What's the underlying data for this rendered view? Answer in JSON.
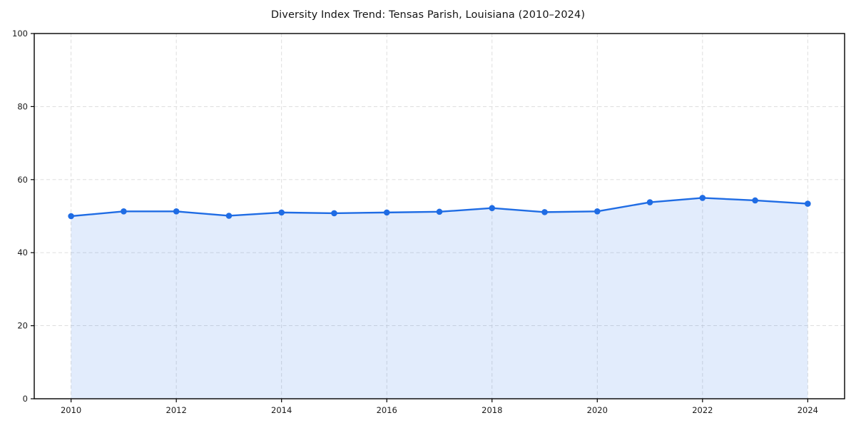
{
  "title": "Diversity Index Trend: Tensas Parish, Louisiana (2010–2024)",
  "chart_data": {
    "type": "line",
    "title": "Diversity Index Trend: Tensas Parish, Louisiana (2010–2024)",
    "x": [
      2010,
      2011,
      2012,
      2013,
      2014,
      2015,
      2016,
      2017,
      2018,
      2019,
      2020,
      2021,
      2022,
      2023,
      2024
    ],
    "series": [
      {
        "name": "Diversity Index",
        "values": [
          50.0,
          51.3,
          51.3,
          50.1,
          51.0,
          50.8,
          51.0,
          51.2,
          52.2,
          51.1,
          51.3,
          53.8,
          55.0,
          54.3,
          53.4
        ]
      }
    ],
    "xlabel": "",
    "ylabel": "",
    "ylim": [
      0,
      100
    ],
    "yticks": [
      0,
      20,
      40,
      60,
      80,
      100
    ],
    "xticks": [
      2010,
      2012,
      2014,
      2016,
      2018,
      2020,
      2022,
      2024
    ],
    "grid": true,
    "grid_style": "dashed",
    "legend": false,
    "marker": "circle",
    "area_fill": true,
    "colors": {
      "line": "#1f6ce4",
      "marker": "#1f6ce4",
      "fill": "rgba(31, 108, 228, 0.13)",
      "grid": "#dadada",
      "axis": "#000000",
      "text": "#1a1a1a",
      "background": "#ffffff"
    }
  }
}
